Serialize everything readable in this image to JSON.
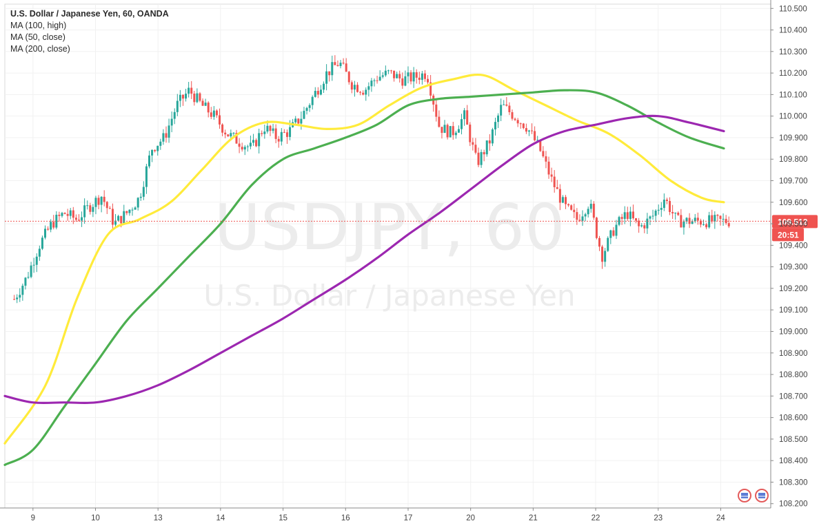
{
  "header": {
    "title": "U.S. Dollar / Japanese Yen, 60, OANDA",
    "indicators": [
      "MA (100, high)",
      "MA (50, close)",
      "MA (200, close)"
    ]
  },
  "watermark": {
    "symbol": "USDJPY, 60",
    "description": "U.S. Dollar / Japanese Yen"
  },
  "price_tag": {
    "value": "109.512",
    "countdown": "20:51"
  },
  "colors": {
    "up": "#26a69a",
    "down": "#ef5350",
    "ma100": "#ffeb3b",
    "ma50": "#4caf50",
    "ma200": "#9c27b0",
    "price_line": "#ef5350"
  },
  "chart_data": {
    "type": "line",
    "title": "U.S. Dollar / Japanese Yen, 60, OANDA",
    "xlabel": "",
    "ylabel": "",
    "x_ticks": [
      "9",
      "10",
      "13",
      "14",
      "15",
      "16",
      "17",
      "20",
      "21",
      "22",
      "23",
      "24"
    ],
    "x_tick_pos": [
      0.3,
      1.3,
      2.3,
      3.3,
      4.3,
      5.3,
      6.3,
      7.3,
      8.3,
      9.3,
      10.3,
      11.3
    ],
    "y_ticks": [
      "108.200",
      "108.300",
      "108.400",
      "108.500",
      "108.600",
      "108.700",
      "108.800",
      "108.900",
      "109.000",
      "109.100",
      "109.200",
      "109.300",
      "109.400",
      "109.500",
      "109.600",
      "109.700",
      "109.800",
      "109.900",
      "110.000",
      "110.100",
      "110.200",
      "110.300",
      "110.400",
      "110.500"
    ],
    "ylim": [
      108.18,
      110.52
    ],
    "xlim": [
      -0.15,
      12.1
    ],
    "grid": true,
    "price_series": {
      "name": "USDJPY close",
      "x": [
        0,
        0.2,
        0.4,
        0.6,
        0.8,
        1.0,
        1.2,
        1.4,
        1.6,
        1.8,
        2.0,
        2.2,
        2.4,
        2.6,
        2.8,
        3.0,
        3.2,
        3.4,
        3.6,
        3.8,
        4.0,
        4.2,
        4.4,
        4.6,
        4.8,
        5.0,
        5.2,
        5.4,
        5.6,
        5.8,
        6.0,
        6.2,
        6.4,
        6.6,
        6.8,
        7.0,
        7.2,
        7.4,
        7.6,
        7.8,
        8.0,
        8.2,
        8.4,
        8.6,
        8.8,
        9.0,
        9.2,
        9.4,
        9.6,
        9.8,
        10.0,
        10.2,
        10.4,
        10.6,
        10.8,
        11.0,
        11.2,
        11.4
      ],
      "values": [
        109.15,
        109.25,
        109.4,
        109.5,
        109.55,
        109.52,
        109.58,
        109.63,
        109.5,
        109.55,
        109.62,
        109.85,
        109.9,
        110.05,
        110.12,
        110.05,
        110.0,
        109.92,
        109.88,
        109.85,
        109.95,
        109.9,
        109.93,
        110.0,
        110.1,
        110.2,
        110.25,
        110.15,
        110.12,
        110.18,
        110.2,
        110.17,
        110.18,
        110.2,
        109.95,
        109.92,
        110.0,
        109.78,
        109.88,
        110.05,
        110.0,
        109.95,
        109.85,
        109.7,
        109.58,
        109.52,
        109.6,
        109.35,
        109.48,
        109.55,
        109.48,
        109.53,
        109.62,
        109.512,
        109.512,
        109.512,
        109.512,
        109.512
      ]
    },
    "series": [
      {
        "name": "MA (100, high)",
        "x": [
          -0.15,
          0.5,
          1.0,
          1.5,
          2.0,
          2.5,
          3.0,
          3.5,
          4.0,
          4.5,
          5.0,
          5.5,
          6.0,
          6.5,
          7.0,
          7.5,
          8.0,
          8.5,
          9.0,
          9.5,
          10.0,
          10.5,
          11.0,
          11.35
        ],
        "values": [
          108.48,
          108.75,
          109.15,
          109.45,
          109.52,
          109.6,
          109.75,
          109.9,
          109.97,
          109.96,
          109.94,
          109.96,
          110.05,
          110.13,
          110.17,
          110.19,
          110.12,
          110.05,
          109.98,
          109.92,
          109.82,
          109.7,
          109.62,
          109.6
        ]
      },
      {
        "name": "MA (50, close)",
        "x": [
          -0.15,
          0.3,
          0.8,
          1.3,
          1.8,
          2.3,
          2.8,
          3.3,
          3.8,
          4.3,
          4.8,
          5.3,
          5.8,
          6.3,
          6.8,
          7.3,
          7.8,
          8.3,
          8.8,
          9.3,
          9.8,
          10.3,
          10.8,
          11.35
        ],
        "values": [
          108.38,
          108.45,
          108.65,
          108.85,
          109.05,
          109.2,
          109.35,
          109.5,
          109.68,
          109.8,
          109.85,
          109.9,
          109.96,
          110.05,
          110.08,
          110.09,
          110.1,
          110.11,
          110.12,
          110.11,
          110.05,
          109.97,
          109.9,
          109.85
        ]
      },
      {
        "name": "MA (200, close)",
        "x": [
          -0.15,
          0.3,
          0.8,
          1.3,
          1.8,
          2.3,
          2.8,
          3.3,
          3.8,
          4.3,
          4.8,
          5.3,
          5.8,
          6.3,
          6.8,
          7.3,
          7.8,
          8.3,
          8.8,
          9.3,
          9.8,
          10.3,
          10.8,
          11.35
        ],
        "values": [
          108.7,
          108.67,
          108.67,
          108.67,
          108.7,
          108.75,
          108.82,
          108.9,
          108.98,
          109.06,
          109.15,
          109.24,
          109.34,
          109.45,
          109.55,
          109.66,
          109.77,
          109.87,
          109.93,
          109.96,
          109.99,
          110.0,
          109.97,
          109.93
        ]
      }
    ]
  }
}
